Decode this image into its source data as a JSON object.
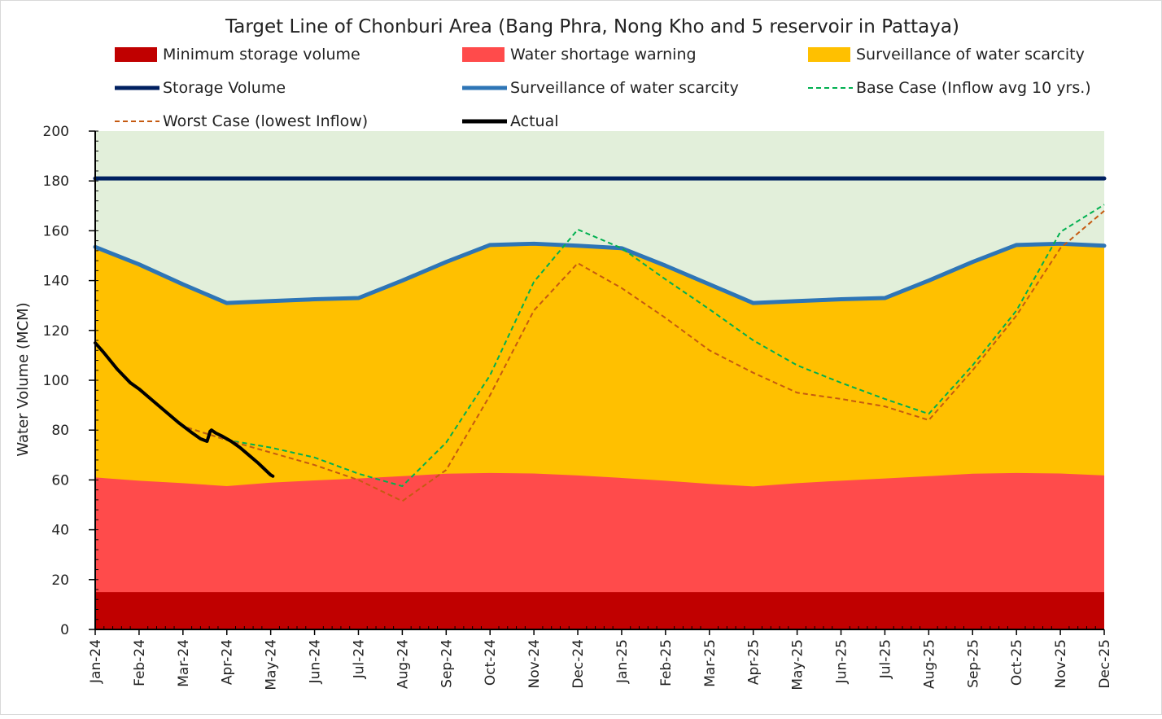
{
  "chart_data": {
    "type": "area",
    "title": "Target Line of Chonburi Area (Bang Phra, Nong Kho and 5 reservoir in Pattaya)",
    "xlabel": "",
    "ylabel": "Water Volume (MCM)",
    "ylim": [
      0,
      200
    ],
    "ytick_step": 20,
    "grid": false,
    "categories": [
      "Jan-24",
      "Feb-24",
      "Mar-24",
      "Apr-24",
      "May-24",
      "Jun-24",
      "Jul-24",
      "Aug-24",
      "Sep-24",
      "Oct-24",
      "Nov-24",
      "Dec-24",
      "Jan-25",
      "Feb-25",
      "Mar-25",
      "Apr-25",
      "May-25",
      "Jun-25",
      "Jul-25",
      "Aug-25",
      "Sep-25",
      "Oct-25",
      "Nov-25",
      "Dec-25"
    ],
    "background_band": {
      "name": "Normal zone",
      "from": 0,
      "to": 200,
      "color": "#e2efda"
    },
    "areas": [
      {
        "name": "Minimum storage volume",
        "color": "#c00000",
        "values": [
          15,
          15,
          15,
          15,
          15,
          15,
          15,
          15,
          15,
          15,
          15,
          15,
          15,
          15,
          15,
          15,
          15,
          15,
          15,
          15,
          15,
          15,
          15,
          15
        ]
      },
      {
        "name": "Water shortage warning",
        "color": "#ff4b4b",
        "values": [
          61,
          59.7,
          58.7,
          57.5,
          58.9,
          59.8,
          60.6,
          61.5,
          62.5,
          62.8,
          62.6,
          61.8,
          60.8,
          59.7,
          58.4,
          57.4,
          58.7,
          59.7,
          60.6,
          61.5,
          62.5,
          62.8,
          62.6,
          61.8
        ]
      },
      {
        "name": "Surveillance of water scarcity",
        "color": "#ffc000",
        "values": [
          153.5,
          146.5,
          138.5,
          131,
          131.8,
          132.5,
          133,
          140,
          147.5,
          154.3,
          154.8,
          154,
          153,
          146,
          138.5,
          131,
          131.8,
          132.5,
          133,
          140,
          147.5,
          154.3,
          154.8,
          154
        ]
      }
    ],
    "series": [
      {
        "name": "Storage Volume",
        "color": "#002060",
        "style": "solid",
        "width": 5,
        "x": [
          0,
          23
        ],
        "y": [
          181,
          181
        ]
      },
      {
        "name": "Surveillance of water scarcity",
        "color": "#2e75b6",
        "style": "solid",
        "width": 5,
        "x": [
          0,
          1,
          2,
          3,
          4,
          5,
          6,
          7,
          8,
          9,
          10,
          11,
          12,
          13,
          14,
          15,
          16,
          17,
          18,
          19,
          20,
          21,
          22,
          23
        ],
        "y": [
          153.5,
          146.5,
          138.5,
          131,
          131.8,
          132.5,
          133,
          140,
          147.5,
          154.3,
          154.8,
          154,
          153,
          146,
          138.5,
          131,
          131.8,
          132.5,
          133,
          140,
          147.5,
          154.3,
          154.8,
          154
        ]
      },
      {
        "name": "Base Case (Inflow avg 10 yrs.)",
        "color": "#00b050",
        "style": "dashed",
        "width": 2,
        "x": [
          2.1,
          3,
          4,
          5,
          6,
          7,
          8,
          9,
          10,
          11,
          12,
          13,
          14,
          15,
          16,
          17,
          18,
          19,
          20,
          21,
          22,
          23
        ],
        "y": [
          81,
          76,
          73,
          69,
          62.5,
          57.5,
          75,
          102,
          139.5,
          160.5,
          153,
          140.5,
          128.5,
          116,
          106,
          99,
          92.5,
          86.5,
          106,
          128,
          159.5,
          170.5
        ]
      },
      {
        "name": "Worst Case (lowest Inflow)",
        "color": "#c55a11",
        "style": "dashed",
        "width": 2,
        "x": [
          2.1,
          3,
          4,
          5,
          6,
          7,
          8,
          9,
          10,
          11,
          12,
          13,
          14,
          15,
          16,
          17,
          18,
          19,
          20,
          21,
          22,
          23
        ],
        "y": [
          81,
          76,
          71,
          66,
          60,
          51.5,
          64,
          94,
          128,
          147,
          137,
          125,
          112,
          103,
          95,
          92.5,
          89.5,
          84,
          104,
          126,
          153,
          168
        ]
      },
      {
        "name": "Actual",
        "color": "#000000",
        "style": "solid",
        "width": 4,
        "x": [
          0,
          0.1,
          0.2,
          0.5,
          0.8,
          1,
          1.3,
          1.6,
          1.9,
          2.2,
          2.4,
          2.55,
          2.62,
          2.65,
          2.75,
          2.9,
          3.1,
          3.3,
          3.5,
          3.7,
          3.85,
          4.0,
          4.05
        ],
        "y": [
          115,
          113,
          111,
          104.5,
          99,
          96.5,
          92,
          87.5,
          83,
          79,
          76.5,
          75.5,
          79.5,
          80,
          78.8,
          77.5,
          75.5,
          73,
          70,
          67,
          64.5,
          62,
          61.5
        ]
      }
    ],
    "legend": {
      "placement": "top",
      "entries": [
        {
          "label": "Minimum storage volume",
          "kind": "patch",
          "color": "#c00000"
        },
        {
          "label": "Water shortage warning",
          "kind": "patch",
          "color": "#ff4b4b"
        },
        {
          "label": "Surveillance of water scarcity",
          "kind": "patch",
          "color": "#ffc000"
        },
        {
          "label": "Storage Volume",
          "kind": "line",
          "color": "#002060",
          "style": "solid"
        },
        {
          "label": "Surveillance of water scarcity",
          "kind": "line",
          "color": "#2e75b6",
          "style": "solid"
        },
        {
          "label": "Base Case (Inflow avg 10 yrs.)",
          "kind": "line",
          "color": "#00b050",
          "style": "dashed"
        },
        {
          "label": "Worst Case (lowest Inflow)",
          "kind": "line",
          "color": "#c55a11",
          "style": "dashed"
        },
        {
          "label": "Actual",
          "kind": "line",
          "color": "#000000",
          "style": "solid"
        }
      ]
    }
  }
}
